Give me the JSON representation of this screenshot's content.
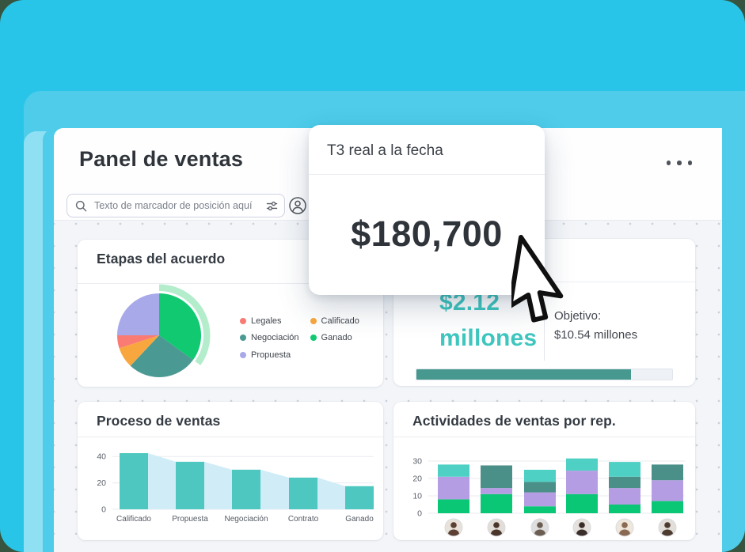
{
  "window": {
    "title": "Panel de ventas"
  },
  "search": {
    "placeholder": "Texto de marcador de posición aquí"
  },
  "popup": {
    "title": "T3 real a la fecha",
    "value": "$180,700"
  },
  "cards": {
    "revenue": {
      "value_line1": "$2.12",
      "value_line2": "millones",
      "target_label": "Objetivo:",
      "target_value": "$10.54 millones",
      "progress_pct": 84
    }
  },
  "colors": {
    "accent_teal": "#3EC6BF",
    "progress_fill": "#47988F",
    "outer_frame": "#29C5E8",
    "inner_band": "#4ECCEA",
    "light_sheet": "#90E0F3"
  },
  "chart_data": [
    {
      "type": "pie",
      "title": "Etapas del acuerdo",
      "slices": [
        {
          "label": "Ganado",
          "value": 35,
          "color": "#10C971",
          "highlighted": true
        },
        {
          "label": "Negociación",
          "value": 27,
          "color": "#4A9A93"
        },
        {
          "label": "Calificado",
          "value": 8,
          "color": "#F8A73E"
        },
        {
          "label": "Legales",
          "value": 5,
          "color": "#F97B74"
        },
        {
          "label": "Propuesta",
          "value": 25,
          "color": "#A8A9E9"
        }
      ],
      "highlight_arc_color": "#ABEBC7",
      "legend_order": [
        "Legales",
        "Negociación",
        "Propuesta",
        "Calificado",
        "Ganado"
      ],
      "legend_position": "right"
    },
    {
      "type": "bar",
      "title": "Proceso de ventas",
      "categories": [
        "Calificado",
        "Propuesta",
        "Negociación",
        "Contrato",
        "Ganado"
      ],
      "values": [
        42.5,
        36,
        30,
        24,
        17.5
      ],
      "yticks": [
        0,
        20,
        40
      ],
      "ylim": [
        0,
        48
      ],
      "bar_color": "#4DC7BF",
      "funnel_area_color": "#D0EDF7",
      "grid": true
    },
    {
      "type": "bar-stacked",
      "title": "Actividades de ventas por rep.",
      "categories": [
        "rep-1",
        "rep-2",
        "rep-3",
        "rep-4",
        "rep-5",
        "rep-6"
      ],
      "series": [
        {
          "name": "green",
          "color": "#0AC775",
          "values": [
            8,
            11,
            4,
            11,
            5,
            7
          ]
        },
        {
          "name": "purple",
          "color": "#B49DE2",
          "values": [
            13,
            3.5,
            8,
            13.5,
            9.5,
            12
          ]
        },
        {
          "name": "dark-teal",
          "color": "#4A8F88",
          "values": [
            0,
            13,
            6,
            0,
            6.5,
            9
          ]
        },
        {
          "name": "cyan",
          "color": "#4FD0C5",
          "values": [
            7,
            0,
            7,
            7,
            8.5,
            0
          ]
        }
      ],
      "yticks": [
        0,
        10,
        20,
        30
      ],
      "ylim": [
        0,
        33
      ],
      "grid": true,
      "avatars": [
        {
          "bg": "#E9E2DA",
          "fg": "#5C4033"
        },
        {
          "bg": "#E3DDD8",
          "fg": "#4A352B"
        },
        {
          "bg": "#DEDEDE",
          "fg": "#6B5D52"
        },
        {
          "bg": "#E6E1DC",
          "fg": "#3B2E2A"
        },
        {
          "bg": "#EFE6DC",
          "fg": "#8A6A52"
        },
        {
          "bg": "#E2DFDA",
          "fg": "#4E3B30"
        }
      ]
    }
  ]
}
